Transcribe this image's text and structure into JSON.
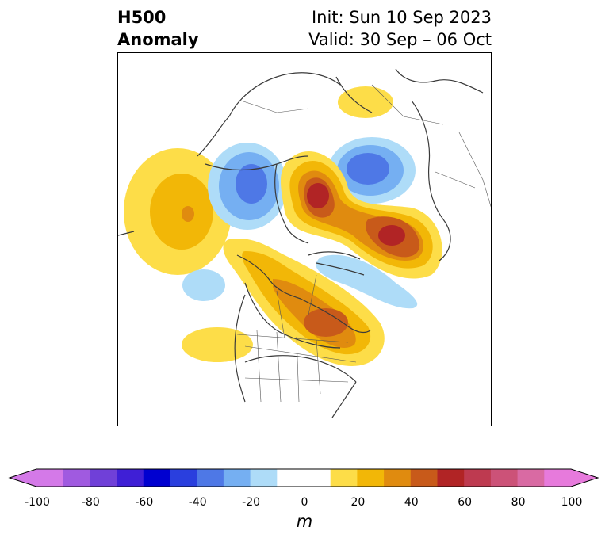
{
  "header": {
    "field": "H500",
    "product": "Anomaly",
    "init": "Init: Sun 10 Sep 2023",
    "valid": "Valid: 30 Sep – 06 Oct"
  },
  "colorbar": {
    "unit": "m",
    "tick_labels": [
      "-100",
      "-80",
      "-60",
      "-40",
      "-20",
      "0",
      "20",
      "40",
      "60",
      "80",
      "100"
    ],
    "levels": [
      -100,
      -90,
      -80,
      -70,
      -60,
      -50,
      -40,
      -30,
      -20,
      -10,
      10,
      20,
      30,
      40,
      50,
      60,
      70,
      80,
      90,
      100
    ],
    "colors": [
      "#d479e8",
      "#a05ae0",
      "#7040d8",
      "#3f1fd6",
      "#0000d0",
      "#2a3fde",
      "#4e78e6",
      "#75aff2",
      "#aedcf8",
      "#ffffff",
      "#fddd48",
      "#f2b707",
      "#e08b0f",
      "#c85a1a",
      "#b12425",
      "#be3a50",
      "#cc5278",
      "#d96aa3",
      "#e77adc"
    ],
    "under_color": "#d479e8",
    "over_color": "#e77adc"
  },
  "map": {
    "projection": "north-polar stereographic",
    "region": "North America / Arctic",
    "anomalies": [
      {
        "sign": "positive",
        "peak_m": 60,
        "area": "Canadian Arctic Archipelago"
      },
      {
        "sign": "positive",
        "peak_m": 60,
        "area": "Norwegian Sea / Scandinavia"
      },
      {
        "sign": "positive",
        "peak_m": 50,
        "area": "Hudson Bay / eastern Canada"
      },
      {
        "sign": "positive",
        "peak_m": 30,
        "area": "North Pacific"
      },
      {
        "sign": "positive",
        "peak_m": 20,
        "area": "Eastern Europe"
      },
      {
        "sign": "positive",
        "peak_m": 20,
        "area": "Northeast Pacific off California"
      },
      {
        "sign": "negative",
        "peak_m": -50,
        "area": "Eastern Siberia"
      },
      {
        "sign": "negative",
        "peak_m": -50,
        "area": "Western Siberia / Kara Sea"
      },
      {
        "sign": "negative",
        "peak_m": -20,
        "area": "Davis Strait / Labrador Sea"
      },
      {
        "sign": "negative",
        "peak_m": -20,
        "area": "Gulf of Alaska"
      }
    ]
  }
}
